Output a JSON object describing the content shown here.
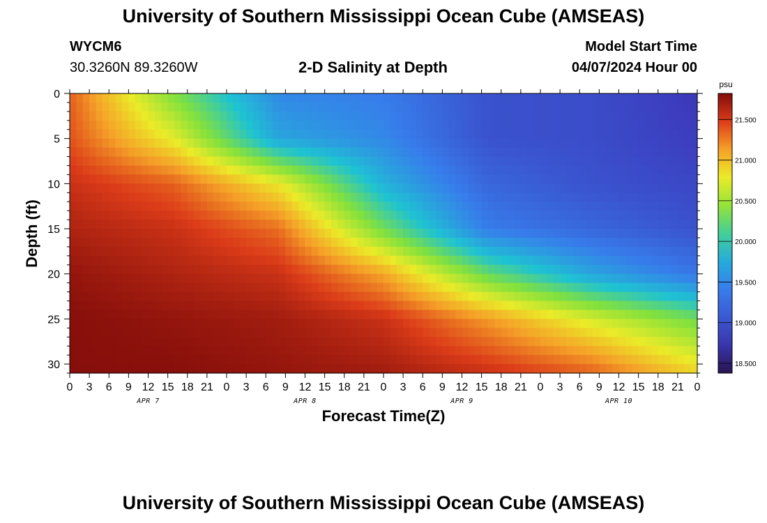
{
  "header": {
    "title": "University of Southern Mississippi Ocean Cube (AMSEAS)",
    "station_id": "WYCM6",
    "coords": "30.3260N  89.3260W",
    "plot_title": "2-D Salinity at Depth",
    "model_start_label": "Model Start Time",
    "model_start_time": "04/07/2024 Hour 00"
  },
  "footer": {
    "title": "University of Southern Mississippi Ocean Cube (AMSEAS)"
  },
  "chart_data": {
    "type": "heatmap",
    "title": "2-D Salinity at Depth",
    "xlabel": "Forecast Time(Z)",
    "ylabel": "Depth (ft)",
    "x_hours": [
      0,
      3,
      6,
      9,
      12,
      15,
      18,
      21,
      24,
      27,
      30,
      33,
      36,
      39,
      42,
      45,
      48,
      51,
      54,
      57,
      60,
      63,
      66,
      69,
      72,
      75,
      78,
      81,
      84,
      87,
      90,
      93,
      96
    ],
    "x_tick_labels": [
      "0",
      "3",
      "6",
      "9",
      "12",
      "15",
      "18",
      "21",
      "0",
      "3",
      "6",
      "9",
      "12",
      "15",
      "18",
      "21",
      "0",
      "3",
      "6",
      "9",
      "12",
      "15",
      "18",
      "21",
      "0",
      "3",
      "6",
      "9",
      "12",
      "15",
      "18",
      "21",
      "0"
    ],
    "date_labels": [
      {
        "hour": 12,
        "label": "APR 7"
      },
      {
        "hour": 36,
        "label": "APR 8"
      },
      {
        "hour": 60,
        "label": "APR 9"
      },
      {
        "hour": 84,
        "label": "APR 10"
      }
    ],
    "xlim": [
      0,
      96
    ],
    "y_ticks": [
      0,
      5,
      10,
      15,
      20,
      25,
      30
    ],
    "ylim": [
      0,
      31
    ],
    "y_inverted": true,
    "depths_ft": [
      0,
      5,
      10,
      15,
      20,
      25,
      31
    ],
    "values_psu": [
      [
        21.35,
        20.35,
        19.5,
        19.4,
        19.0,
        18.95,
        18.75
      ],
      [
        21.4,
        20.75,
        19.7,
        19.5,
        19.0,
        18.95,
        18.8
      ],
      [
        21.55,
        21.35,
        20.8,
        19.8,
        19.2,
        19.0,
        18.9
      ],
      [
        21.65,
        21.55,
        21.3,
        20.3,
        19.4,
        19.2,
        19.0
      ],
      [
        21.75,
        21.65,
        21.55,
        21.1,
        20.25,
        19.7,
        19.35
      ],
      [
        21.8,
        21.75,
        21.7,
        21.55,
        21.15,
        20.7,
        20.3
      ],
      [
        21.8,
        21.8,
        21.75,
        21.7,
        21.55,
        21.35,
        20.9
      ]
    ],
    "colorbar": {
      "unit": "psu",
      "min": 18.38,
      "max": 21.82,
      "ticks": [
        18.5,
        19.0,
        19.5,
        20.0,
        20.5,
        21.0,
        21.5
      ],
      "tick_labels": [
        "18.500",
        "19.000",
        "19.500",
        "20.000",
        "20.500",
        "21.000",
        "21.500"
      ]
    }
  }
}
